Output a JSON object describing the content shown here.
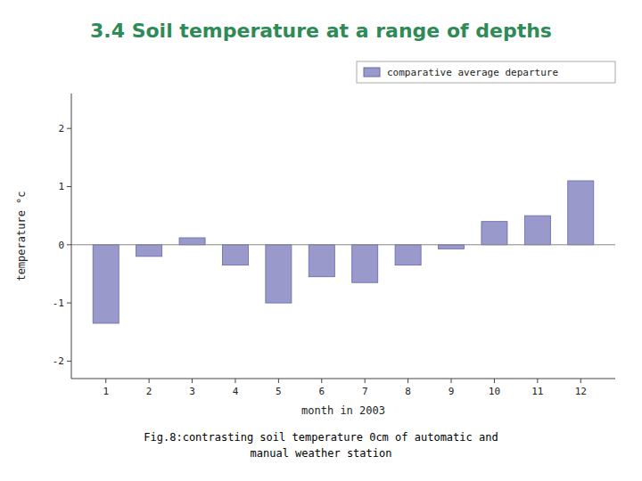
{
  "chart_data": {
    "type": "bar",
    "title": "3.4 Soil temperature at a range of depths",
    "x_label": "month in 2003",
    "y_label": "temperature  °c",
    "x": [
      1,
      2,
      3,
      4,
      5,
      6,
      7,
      8,
      9,
      10,
      11,
      12
    ],
    "series": [
      {
        "name": "comparative average departure",
        "color": "#9999cc",
        "values": [
          -1.35,
          -0.2,
          0.12,
          -0.35,
          -1.0,
          -0.55,
          -0.65,
          -0.35,
          -0.07,
          0.4,
          0.5,
          1.1
        ]
      }
    ],
    "xlim": [
      0.2,
      12.8
    ],
    "xticks": [
      1,
      2,
      3,
      4,
      5,
      6,
      7,
      8,
      9,
      10,
      11,
      12
    ],
    "ylim": [
      -2.3,
      2.6
    ],
    "yticks": [
      -2,
      -1,
      0,
      1,
      2
    ],
    "grid": false,
    "legend": "upper right",
    "annotations": [
      "Fig.8:contrasting soil temperature 0cm of automatic and",
      "manual weather station"
    ]
  }
}
